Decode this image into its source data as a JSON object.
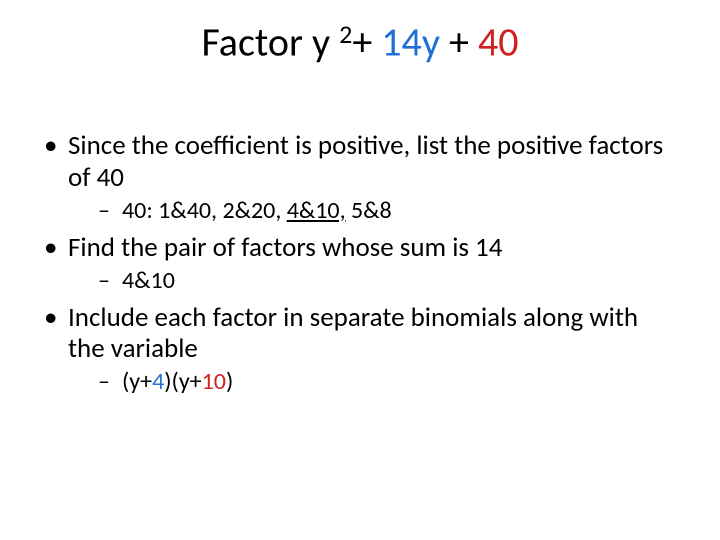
{
  "colors": {
    "black": "#000000",
    "blue": "#1f6fd4",
    "red": "#d02020",
    "bg": "#ffffff"
  },
  "fonts": {
    "family": "Calibri",
    "title_size_pt": 40,
    "body_size_pt": 27,
    "sub_size_pt": 24
  },
  "title": {
    "p1": "Factor y ",
    "sup": "2",
    "p2": "+ ",
    "p3_blue": "14y ",
    "p4": "+ ",
    "p5_red": "40"
  },
  "bullets": {
    "b1": "Since the coefficient is positive, list the positive factors of 40",
    "b1_sub_prefix": "40: 1&40, 2&20, ",
    "b1_sub_highlight": "4&10,",
    "b1_sub_suffix": " 5&8",
    "b2": "Find the pair of factors whose sum is 14",
    "b2_sub": "4&10",
    "b3": "Include each factor in separate binomials along with the variable",
    "b3_sub_p1": "(y+",
    "b3_sub_c1": "4",
    "b3_sub_p2": ")(y+",
    "b3_sub_c2": "10",
    "b3_sub_p3": ")"
  }
}
